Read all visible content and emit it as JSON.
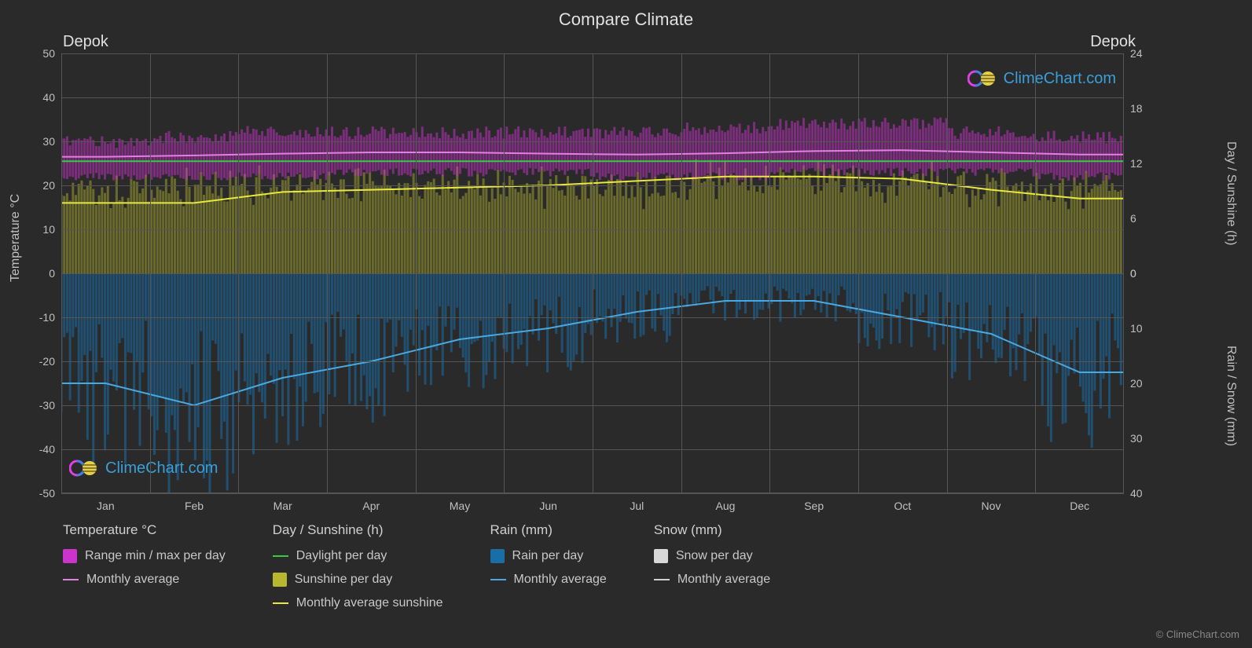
{
  "title": "Compare Climate",
  "location_left": "Depok",
  "location_right": "Depok",
  "brand_text": "ClimeChart.com",
  "copyright": "© ClimeChart.com",
  "chart": {
    "type": "climate-comparison",
    "background_color": "#2a2a2a",
    "grid_color": "#555555",
    "text_color": "#c0c0c0",
    "months": [
      "Jan",
      "Feb",
      "Mar",
      "Apr",
      "May",
      "Jun",
      "Jul",
      "Aug",
      "Sep",
      "Oct",
      "Nov",
      "Dec"
    ],
    "y_left": {
      "label": "Temperature °C",
      "min": -50,
      "max": 50,
      "step": 10,
      "ticks": [
        50,
        40,
        30,
        20,
        10,
        0,
        -10,
        -20,
        -30,
        -40,
        -50
      ]
    },
    "y_right_top": {
      "label": "Day / Sunshine (h)",
      "min": 0,
      "max": 24,
      "step": 6,
      "ticks": [
        24,
        18,
        12,
        6,
        0
      ]
    },
    "y_right_bottom": {
      "label": "Rain / Snow (mm)",
      "min": 0,
      "max": 40,
      "step": 10,
      "ticks": [
        0,
        10,
        20,
        30,
        40
      ]
    },
    "series": {
      "temp_range": {
        "color": "#cc33cc",
        "min_values": [
          22,
          22,
          22,
          23,
          23,
          23,
          22,
          22,
          23,
          23,
          23,
          22
        ],
        "max_values": [
          30,
          31,
          32,
          32,
          32,
          32,
          32,
          33,
          34,
          34,
          32,
          31
        ]
      },
      "temp_monthly_avg": {
        "color": "#e080e0",
        "values": [
          26.5,
          26.8,
          27.2,
          27.5,
          27.5,
          27.2,
          27.0,
          27.3,
          27.8,
          28.0,
          27.5,
          27.0
        ]
      },
      "daylight": {
        "color": "#33cc44",
        "values": [
          25.5,
          25.5,
          25.5,
          25.5,
          25.5,
          25.5,
          25.5,
          25.5,
          25.5,
          25.5,
          25.5,
          25.5
        ]
      },
      "sunshine_bars": {
        "color": "#b8b830",
        "max_values": [
          22,
          22,
          23,
          23,
          23,
          23,
          23,
          24,
          24,
          24,
          23,
          22
        ]
      },
      "sunshine_monthly": {
        "color": "#e8e840",
        "values": [
          16,
          16,
          18.5,
          19,
          19.5,
          20,
          21,
          22,
          22,
          21.5,
          19,
          17
        ]
      },
      "rain_bars": {
        "color": "#1a6ea8",
        "opacity": 0.55
      },
      "rain_monthly": {
        "color": "#4aa8e0",
        "values_mm": [
          20,
          24,
          19,
          16,
          12,
          10,
          7,
          5,
          5,
          8,
          11,
          18
        ]
      }
    }
  },
  "legend": {
    "groups": [
      {
        "title": "Temperature °C",
        "items": [
          {
            "type": "swatch",
            "color": "#cc33cc",
            "label": "Range min / max per day"
          },
          {
            "type": "line",
            "color": "#e080e0",
            "label": "Monthly average"
          }
        ]
      },
      {
        "title": "Day / Sunshine (h)",
        "items": [
          {
            "type": "line",
            "color": "#33cc44",
            "label": "Daylight per day"
          },
          {
            "type": "swatch",
            "color": "#b8b830",
            "label": "Sunshine per day"
          },
          {
            "type": "line",
            "color": "#e8e840",
            "label": "Monthly average sunshine"
          }
        ]
      },
      {
        "title": "Rain (mm)",
        "items": [
          {
            "type": "swatch",
            "color": "#1a6ea8",
            "label": "Rain per day"
          },
          {
            "type": "line",
            "color": "#4aa8e0",
            "label": "Monthly average"
          }
        ]
      },
      {
        "title": "Snow (mm)",
        "items": [
          {
            "type": "swatch",
            "color": "#d8d8d8",
            "label": "Snow per day"
          },
          {
            "type": "line",
            "color": "#d0d0d0",
            "label": "Monthly average"
          }
        ]
      }
    ]
  }
}
